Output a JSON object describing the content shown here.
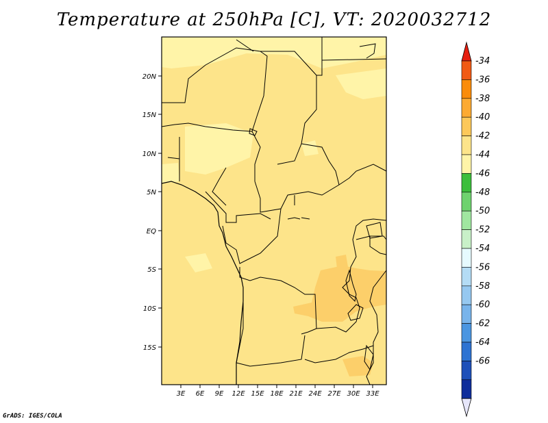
{
  "title": "Temperature at 250hPa [C], VT: 2020032712",
  "credit": "GrADS: IGES/COLA",
  "map": {
    "lat_ticks": [
      "20N",
      "15N",
      "10N",
      "5N",
      "EQ",
      "5S",
      "10S",
      "15S"
    ],
    "lon_ticks": [
      "3E",
      "6E",
      "9E",
      "12E",
      "15E",
      "18E",
      "21E",
      "24E",
      "27E",
      "30E",
      "33E"
    ],
    "dominant_color": "#fde48a",
    "field_colors": {
      "minus42": "#fff4a8",
      "minus40": "#fde48a",
      "minus38": "#fccf6a"
    }
  },
  "colorbar": {
    "labels": [
      "-34",
      "-36",
      "-38",
      "-40",
      "-42",
      "-44",
      "-46",
      "-48",
      "-50",
      "-52",
      "-54",
      "-56",
      "-58",
      "-60",
      "-62",
      "-64",
      "-66"
    ],
    "colors": [
      "#f05a14",
      "#fa8c0a",
      "#fcaa32",
      "#fcc85a",
      "#fde48a",
      "#fff4a8",
      "#3cbe3c",
      "#6ed26e",
      "#a0e6a0",
      "#c8f0c8",
      "#e6faff",
      "#b4dcf5",
      "#96c8f0",
      "#78b4eb",
      "#4b96e1",
      "#2d73d2",
      "#1e50b9",
      "#0f2d9b"
    ],
    "top_arrow_color": "#e61e0f",
    "bottom_arrow_color": "#e6e6fa"
  }
}
